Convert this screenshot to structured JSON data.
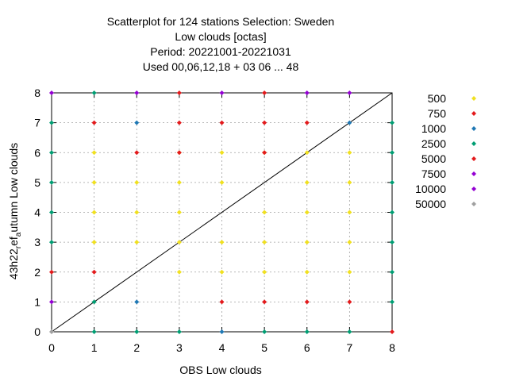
{
  "chart_data": {
    "type": "scatter",
    "title_lines": [
      "Scatterplot for  124 stations Selection: Sweden",
      "Low clouds [octas]",
      "Period: 20221001-20221031",
      "Used  00,06,12,18  + 03 06 ... 48"
    ],
    "xlabel": "OBS Low clouds",
    "ylabel_main": "43h22",
    "ylabel_sub1": "r",
    "ylabel_mid": "ef",
    "ylabel_sub2": "a",
    "ylabel_tail": "utumn Low clouds",
    "xlim": [
      0,
      8
    ],
    "ylim": [
      0,
      8
    ],
    "xticks": [
      "0",
      "1",
      "2",
      "3",
      "4",
      "5",
      "6",
      "7",
      "8"
    ],
    "yticks": [
      "0",
      "1",
      "2",
      "3",
      "4",
      "5",
      "6",
      "7",
      "8"
    ],
    "grid": true,
    "diagonal": true,
    "legend_position": "right",
    "series": [
      {
        "name": "500",
        "color": "#f0e020",
        "points": [
          [
            1,
            3
          ],
          [
            1,
            4
          ],
          [
            1,
            5
          ],
          [
            1,
            6
          ],
          [
            2,
            3
          ],
          [
            2,
            4
          ],
          [
            2,
            5
          ],
          [
            3,
            2
          ],
          [
            3,
            3
          ],
          [
            3,
            4
          ],
          [
            3,
            5
          ],
          [
            3,
            6
          ],
          [
            4,
            2
          ],
          [
            4,
            3
          ],
          [
            4,
            5
          ],
          [
            4,
            6
          ],
          [
            5,
            2
          ],
          [
            5,
            3
          ],
          [
            5,
            4
          ],
          [
            5,
            6
          ],
          [
            6,
            2
          ],
          [
            6,
            3
          ],
          [
            6,
            4
          ],
          [
            6,
            5
          ],
          [
            6,
            6
          ],
          [
            7,
            2
          ],
          [
            7,
            3
          ],
          [
            7,
            4
          ],
          [
            7,
            5
          ],
          [
            7,
            6
          ]
        ]
      },
      {
        "name": "750",
        "color": "#e31a1c",
        "points": [
          [
            0,
            2
          ],
          [
            1,
            2
          ],
          [
            1,
            7
          ],
          [
            2,
            6
          ],
          [
            3,
            6
          ],
          [
            3,
            7
          ],
          [
            3,
            8
          ],
          [
            4,
            1
          ],
          [
            4,
            7
          ],
          [
            5,
            1
          ],
          [
            5,
            6
          ],
          [
            5,
            7
          ],
          [
            5,
            8
          ],
          [
            6,
            1
          ],
          [
            6,
            7
          ],
          [
            7,
            1
          ],
          [
            8,
            0
          ]
        ]
      },
      {
        "name": "1000",
        "color": "#1f78b4",
        "points": [
          [
            2,
            1
          ],
          [
            2,
            7
          ],
          [
            4,
            0
          ],
          [
            7,
            7
          ]
        ]
      },
      {
        "name": "2500",
        "color": "#009e73",
        "points": [
          [
            0,
            3
          ],
          [
            0,
            4
          ],
          [
            0,
            5
          ],
          [
            0,
            6
          ],
          [
            0,
            7
          ],
          [
            1,
            0
          ],
          [
            1,
            1
          ],
          [
            1,
            8
          ],
          [
            2,
            0
          ],
          [
            3,
            0
          ],
          [
            5,
            0
          ],
          [
            6,
            0
          ],
          [
            7,
            0
          ],
          [
            8,
            1
          ],
          [
            8,
            2
          ],
          [
            8,
            3
          ],
          [
            8,
            4
          ],
          [
            8,
            5
          ],
          [
            8,
            6
          ],
          [
            8,
            7
          ]
        ]
      },
      {
        "name": "5000",
        "color": "#e31a1c",
        "points": []
      },
      {
        "name": "7500",
        "color": "#9400d3",
        "points": [
          [
            0,
            1
          ],
          [
            0,
            8
          ],
          [
            2,
            8
          ],
          [
            4,
            8
          ],
          [
            6,
            8
          ],
          [
            7,
            8
          ]
        ]
      },
      {
        "name": "10000",
        "color": "#9400d3",
        "points": []
      },
      {
        "name": "50000",
        "color": "#a0a0a0",
        "points": [
          [
            0,
            0
          ]
        ]
      }
    ]
  }
}
